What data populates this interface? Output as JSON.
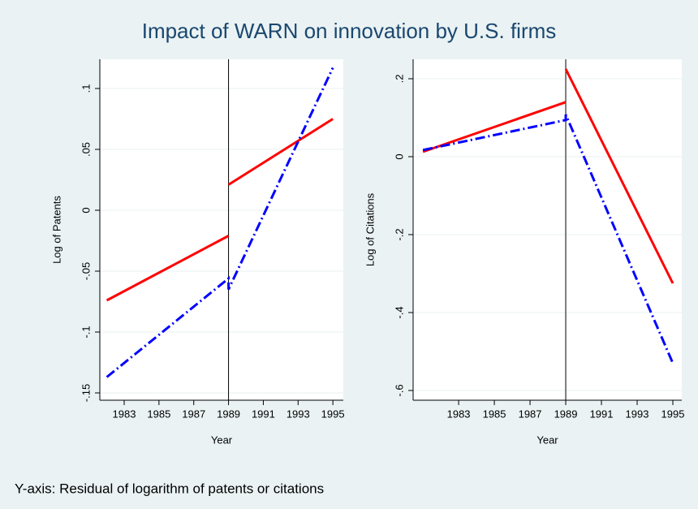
{
  "title": "Impact of WARN on innovation by U.S. firms",
  "note": "Y-axis: Residual of logarithm of patents or citations",
  "chart_data": [
    {
      "type": "line",
      "xlabel": "Year",
      "ylabel": "Log of Patents",
      "xlim": [
        1981.6,
        1995.6
      ],
      "xticks": [
        1983,
        1985,
        1987,
        1989,
        1991,
        1993,
        1995
      ],
      "ylim": [
        -0.156,
        0.124
      ],
      "yticks": [
        {
          "value": -0.15,
          "label": "-.15"
        },
        {
          "value": -0.1,
          "label": "-.1"
        },
        {
          "value": -0.05,
          "label": "-.05"
        },
        0,
        {
          "value": 0.05,
          "label": ".05"
        },
        {
          "value": 0.1,
          "label": ".1"
        }
      ],
      "grid": true,
      "vline": 1989,
      "series": [
        {
          "color": "#ff0000",
          "dash": "solid",
          "x": [
            1982,
            1989
          ],
          "values": [
            -0.074,
            -0.021
          ]
        },
        {
          "color": "#ff0000",
          "dash": "solid",
          "x": [
            1989,
            1995
          ],
          "values": [
            0.021,
            0.075
          ]
        },
        {
          "color": "#0000ff",
          "dash": "dashdot",
          "x": [
            1982,
            1989,
            1989,
            1995
          ],
          "values": [
            -0.137,
            -0.056,
            -0.065,
            0.117
          ]
        }
      ]
    },
    {
      "type": "line",
      "xlabel": "Year",
      "ylabel": "Log of Citations",
      "xlim": [
        1980.45,
        1995.5
      ],
      "xticks": [
        1983,
        1985,
        1987,
        1989,
        1991,
        1993,
        1995
      ],
      "ylim": [
        -0.625,
        0.25
      ],
      "yticks": [
        {
          "value": -0.6,
          "label": "-.6"
        },
        {
          "value": -0.4,
          "label": "-.4"
        },
        {
          "value": -0.2,
          "label": "-.2"
        },
        0,
        {
          "value": 0.2,
          "label": ".2"
        }
      ],
      "grid": true,
      "vline": 1989,
      "series": [
        {
          "color": "#ff0000",
          "dash": "solid",
          "x": [
            1981,
            1989
          ],
          "values": [
            0.0125,
            0.14
          ]
        },
        {
          "color": "#ff0000",
          "dash": "solid",
          "x": [
            1989,
            1995
          ],
          "values": [
            0.225,
            -0.325
          ]
        },
        {
          "color": "#0000ff",
          "dash": "dashdot",
          "x": [
            1981,
            1989,
            1989,
            1995
          ],
          "values": [
            0.017,
            0.094,
            0.108,
            -0.53
          ]
        }
      ]
    }
  ]
}
